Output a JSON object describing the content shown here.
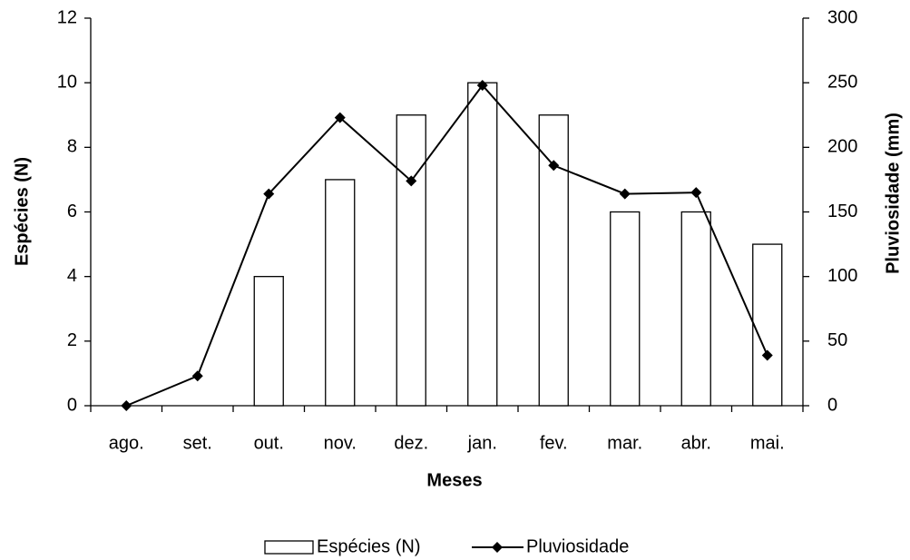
{
  "chart_data": {
    "type": "bar",
    "categories": [
      "ago.",
      "set.",
      "out.",
      "nov.",
      "dez.",
      "jan.",
      "fev.",
      "mar.",
      "abr.",
      "mai."
    ],
    "series": [
      {
        "name": "Espécies (N)",
        "type": "bar",
        "color": "#ffffff",
        "values": [
          0,
          0,
          4,
          7,
          9,
          10,
          9,
          6,
          6,
          5
        ]
      },
      {
        "name": "Pluviosidade",
        "type": "line",
        "axis": "y2",
        "color": "#000000",
        "values": [
          0,
          23,
          164,
          223,
          174,
          248,
          186,
          164,
          165,
          39
        ]
      }
    ],
    "xlabel": "Meses",
    "ylabel": "Espécies (N)",
    "y2label": "Pluviosidade (mm)",
    "ylim": [
      0,
      12
    ],
    "yticks": [
      0,
      2,
      4,
      6,
      8,
      10,
      12
    ],
    "y2lim": [
      0,
      300
    ],
    "y2ticks": [
      0,
      50,
      100,
      150,
      200,
      250,
      300
    ],
    "legend": "bottom",
    "grid": false
  }
}
